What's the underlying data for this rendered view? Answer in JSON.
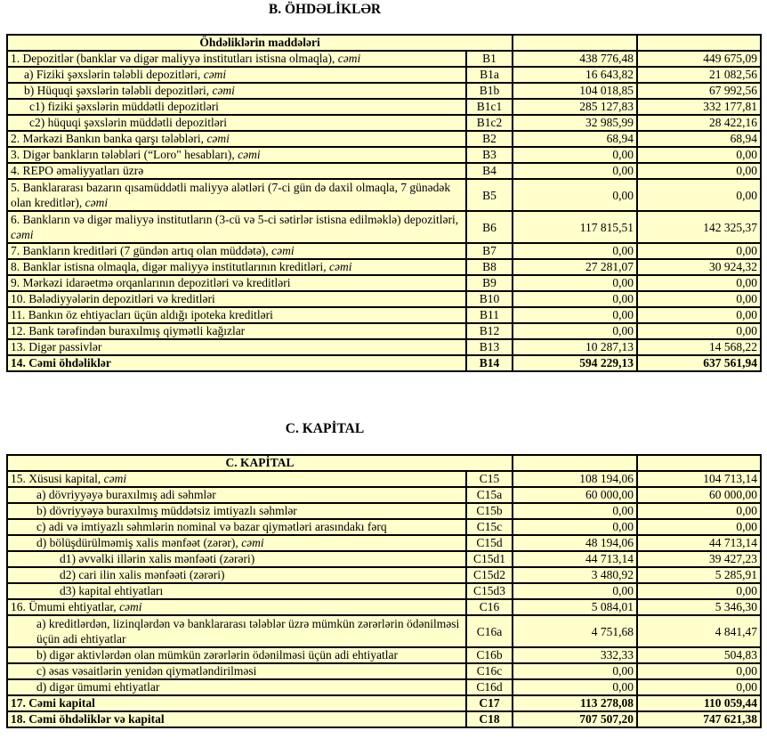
{
  "section_b": {
    "title": "B. ÖHDƏLİKLƏR",
    "header": "Öhdəliklərin maddələri",
    "rows": [
      {
        "label": "1. Depozitlər (banklar və digər maliyyə institutları istisna olmaqla), ",
        "emph": "cəmi",
        "code": "B1",
        "v1": "438 776,48",
        "v2": "449 675,09",
        "level": 0
      },
      {
        "label": "a)  Fiziki şəxslərin tələbli depozitləri, ",
        "emph": "cəmi",
        "code": "B1a",
        "v1": "16 643,82",
        "v2": "21 082,56",
        "level": 1
      },
      {
        "label": "b) Hüquqi şəxslərin tələbli depozitləri, ",
        "emph": "cəmi",
        "code": "B1b",
        "v1": "104 018,85",
        "v2": "67 992,56",
        "level": 1
      },
      {
        "label": "c1) fiziki şəxslərin müddətli depozitləri",
        "emph": "",
        "code": "B1c1",
        "v1": "285 127,83",
        "v2": "332 177,81",
        "level": 2
      },
      {
        "label": "c2) hüquqi şəxslərin müddətli depozitləri",
        "emph": "",
        "code": "B1c2",
        "v1": "32 985,99",
        "v2": "28 422,16",
        "level": 2
      },
      {
        "label": "2. Mərkəzi Bankın banka qarşı tələbləri, ",
        "emph": "cəmi",
        "code": "B2",
        "v1": "68,94",
        "v2": "68,94",
        "level": 0
      },
      {
        "label": "3. Digər bankların tələbləri (“Loro\" hesabları), ",
        "emph": "cəmi",
        "code": "B3",
        "v1": "0,00",
        "v2": "0,00",
        "level": 0
      },
      {
        "label": "4. REPO əməliyyatları  üzrə",
        "emph": "",
        "code": "B4",
        "v1": "0,00",
        "v2": "0,00",
        "level": 0
      },
      {
        "label": "5. Banklararası bazarın qısamüddətli maliyyə alətləri (7-ci gün də daxil olmaqla, 7 günədək olan kreditlər), ",
        "emph": "cəmi",
        "code": "B5",
        "v1": "0,00",
        "v2": "0,00",
        "level": 0,
        "tall": true
      },
      {
        "label": "6. Bankların və digər maliyyə institutların (3-cü və 5-ci sətirlər istisna edilməklə) depozitləri, ",
        "emph": "cəmi",
        "code": "B6",
        "v1": "117 815,51",
        "v2": "142 325,37",
        "level": 0,
        "tall": true
      },
      {
        "label": "7. Bankların kreditləri (7 gündən artıq olan müddətə), ",
        "emph": "cəmi",
        "code": "B7",
        "v1": "0,00",
        "v2": "0,00",
        "level": 0
      },
      {
        "label": "8. Banklar istisna olmaqla, digər maliyyə institutlarının kreditləri, ",
        "emph": "cəmi",
        "code": "B8",
        "v1": "27 281,07",
        "v2": "30 924,32",
        "level": 0
      },
      {
        "label": "9. Mərkəzi idarəetmə orqanlarının depozitləri və kreditləri",
        "emph": "",
        "code": "B9",
        "v1": "0,00",
        "v2": "0,00",
        "level": 0
      },
      {
        "label": "10. Bələdiyyələrin depozitləri və kreditləri",
        "emph": "",
        "code": "B10",
        "v1": "0,00",
        "v2": "0,00",
        "level": 0
      },
      {
        "label": "11. Bankın öz ehtiyacları üçün aldığı ipoteka kreditləri",
        "emph": "",
        "code": "B11",
        "v1": "0,00",
        "v2": "0,00",
        "level": 0
      },
      {
        "label": "12. Bank tərəfindən buraxılmış qiymətli kağızlar",
        "emph": "",
        "code": "B12",
        "v1": "0,00",
        "v2": "0,00",
        "level": 0
      },
      {
        "label": "13. Digər passivlər",
        "emph": "",
        "code": "B13",
        "v1": "10 287,13",
        "v2": "14 568,22",
        "level": 0
      },
      {
        "label": "14. Cəmi öhdəliklər",
        "emph": "",
        "code": "B14",
        "v1": "594 229,13",
        "v2": "637 561,94",
        "level": 0,
        "bold": true
      }
    ]
  },
  "section_c": {
    "title": "C. KAPİTAL",
    "header": "C. KAPİTAL",
    "rows": [
      {
        "label": "15. Xüsusi kapital, ",
        "emph": "cəmi",
        "code": "C15",
        "v1": "108 194,06",
        "v2": "104 713,14",
        "level": 0
      },
      {
        "label": "a) dövriyyəyə buraxılmış adi səhmlər",
        "emph": "",
        "code": "C15a",
        "v1": "60 000,00",
        "v2": "60 000,00",
        "level": 3
      },
      {
        "label": "b) dövriyyəyə buraxılmış müddətsiz imtiyazlı səhmlər",
        "emph": "",
        "code": "C15b",
        "v1": "0,00",
        "v2": "0,00",
        "level": 3
      },
      {
        "label": "c) adi və imtiyazlı səhmlərin nominal və bazar qiymətləri arasındakı fərq",
        "emph": "",
        "code": "C15c",
        "v1": "0,00",
        "v2": "0,00",
        "level": 3
      },
      {
        "label": "d) bölüşdürülməmiş xalis mənfəət (zərər), ",
        "emph": "cəmi",
        "code": "C15d",
        "v1": "48 194,06",
        "v2": "44 713,14",
        "level": 3
      },
      {
        "label": "d1) əvvəlki illərin xalis mənfəəti (zərəri)",
        "emph": "",
        "code": "C15d1",
        "v1": "44 713,14",
        "v2": "39 427,23",
        "level": 4
      },
      {
        "label": "d2) cari ilin xalis mənfəəti (zərəri)",
        "emph": "",
        "code": "C15d2",
        "v1": "3 480,92",
        "v2": "5 285,91",
        "level": 4
      },
      {
        "label": "d3) kapital ehtiyatları",
        "emph": "",
        "code": "C15d3",
        "v1": "0,00",
        "v2": "0,00",
        "level": 4
      },
      {
        "label": "16. Ümumi ehtiyatlar, ",
        "emph": "cəmi",
        "code": "C16",
        "v1": "5 084,01",
        "v2": "5 346,30",
        "level": 0
      },
      {
        "label": "a) kreditlərdən, lizinqlərdən və banklararası  tələblər üzrə mümkün zərərlərin ödənilməsi üçün adi ehtiyatlar",
        "emph": "",
        "code": "C16a",
        "v1": "4 751,68",
        "v2": "4 841,47",
        "level": 3,
        "tall": true
      },
      {
        "label": "b) digər aktivlərdən olan mümkün zərərlərin ödənilməsi üçün adi ehtiyatlar",
        "emph": "",
        "code": "C16b",
        "v1": "332,33",
        "v2": "504,83",
        "level": 3
      },
      {
        "label": "c) əsas vəsaitlərin yenidən qiymətləndirilməsi",
        "emph": "",
        "code": "C16c",
        "v1": "0,00",
        "v2": "0,00",
        "level": 3
      },
      {
        "label": "d) digər ümumi ehtiyatlar",
        "emph": "",
        "code": "C16d",
        "v1": "0,00",
        "v2": "0,00",
        "level": 3
      },
      {
        "label": "17. Cəmi kapital",
        "emph": "",
        "code": "C17",
        "v1": "113 278,08",
        "v2": "110 059,44",
        "level": 0,
        "bold": true
      },
      {
        "label": "18. Cəmi öhdəliklər və kapital",
        "emph": "",
        "code": "C18",
        "v1": "707 507,20",
        "v2": "747 621,38",
        "level": 0,
        "bold": true
      }
    ]
  },
  "colors": {
    "table_background": "#ffffcc",
    "border": "#000000"
  }
}
